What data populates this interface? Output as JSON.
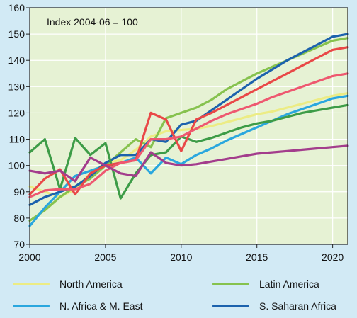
{
  "chart_data": {
    "type": "line",
    "annotation": "Index 2004-06 = 100",
    "xlim": [
      2000,
      2021
    ],
    "ylim": [
      70,
      160
    ],
    "x_ticks": [
      2000,
      2005,
      2010,
      2015,
      2020
    ],
    "y_ticks": [
      70,
      80,
      90,
      100,
      110,
      120,
      130,
      140,
      150,
      160
    ],
    "grid": true,
    "legend_position": "bottom",
    "x": [
      2000,
      2001,
      2002,
      2003,
      2004,
      2005,
      2006,
      2007,
      2008,
      2009,
      2010,
      2011,
      2012,
      2013,
      2014,
      2015,
      2016,
      2017,
      2018,
      2019,
      2020,
      2021
    ],
    "series": [
      {
        "name": "North America",
        "color": "#ecec84",
        "values": [
          92,
          90,
          88,
          91,
          97,
          101,
          102,
          106,
          111,
          113,
          113.5,
          114,
          115,
          116.5,
          118,
          119.5,
          120.5,
          122,
          123.5,
          125,
          126.5,
          127.5
        ]
      },
      {
        "name": "Latin America",
        "color": "#86c24e",
        "values": [
          79,
          83,
          88,
          92,
          95,
          100,
          105,
          110,
          107,
          118,
          120,
          122,
          125,
          129,
          132,
          135,
          137.5,
          140,
          142.5,
          145,
          147.5,
          148.5
        ]
      },
      {
        "name": "N. Africa & M. East",
        "color": "#2aa7de",
        "values": [
          77,
          84,
          90,
          96,
          98,
          100,
          101,
          103,
          97,
          103,
          100.5,
          104,
          106.5,
          109.5,
          112,
          114.5,
          117,
          119.5,
          121.5,
          123.5,
          125.5,
          126.5
        ]
      },
      {
        "name": "S. Saharan Africa",
        "color": "#1c62ad",
        "values": [
          85,
          88,
          90,
          92,
          96,
          101,
          104,
          104,
          110,
          109,
          115.5,
          117,
          121,
          125,
          129,
          133,
          136.5,
          140,
          143,
          146,
          149,
          150
        ]
      },
      {
        "name": "",
        "color": "#3d9c47",
        "values": [
          105,
          110,
          91,
          110.5,
          104,
          108.5,
          87.5,
          97,
          104,
          105,
          111,
          109,
          110.5,
          112.5,
          114.5,
          116,
          117,
          118.5,
          120,
          121,
          122,
          123
        ]
      },
      {
        "name": "",
        "color": "#e94847",
        "values": [
          89,
          95,
          98.5,
          89,
          97,
          100,
          101,
          102,
          120,
          117.5,
          105.5,
          117.5,
          120,
          123,
          126,
          129,
          132,
          135,
          138,
          141,
          144,
          145
        ]
      },
      {
        "name": "",
        "color": "#ee5870",
        "values": [
          88,
          90.5,
          91,
          91,
          93,
          98,
          101,
          102,
          110,
          110,
          111,
          114,
          117,
          119.5,
          121.5,
          123.5,
          126,
          128,
          130,
          132,
          134,
          135
        ]
      },
      {
        "name": "",
        "color": "#a33d8c",
        "values": [
          98,
          97,
          98,
          94,
          103,
          100,
          97,
          96,
          105,
          101,
          100,
          100.5,
          101.5,
          102.5,
          103.5,
          104.5,
          105,
          105.5,
          106,
          106.5,
          107,
          107.5
        ]
      }
    ]
  },
  "colors": {
    "page_background": "#d2eaf5",
    "plot_background": "#e6f2d4",
    "grid": "#ffffff",
    "axis": "#222222"
  }
}
